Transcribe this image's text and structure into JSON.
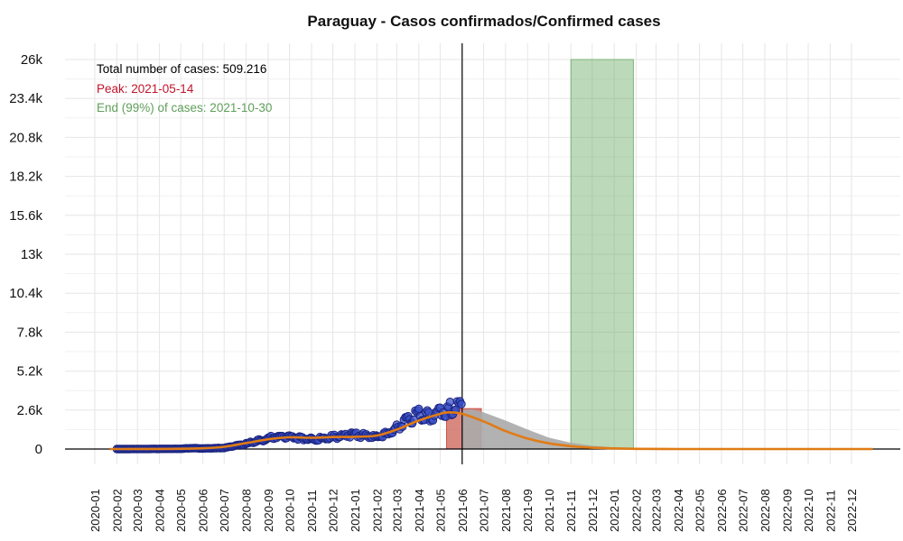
{
  "chart_data": {
    "type": "scatter",
    "title": "Paraguay - Casos confirmados/Confirmed cases",
    "xlabel": "",
    "ylabel": "",
    "xlim": [
      "2020-01-01",
      "2023-01-01"
    ],
    "ylim": [
      0,
      26000
    ],
    "y_ticks": [
      "0",
      "2.6k",
      "5.2k",
      "7.8k",
      "10.4k",
      "13k",
      "15.6k",
      "18.2k",
      "20.8k",
      "23.4k",
      "26k"
    ],
    "y_tick_values": [
      0,
      2600,
      5200,
      7800,
      10400,
      13000,
      15600,
      18200,
      20800,
      23400,
      26000
    ],
    "x_ticks": [
      "2020-01",
      "2020-02",
      "2020-03",
      "2020-04",
      "2020-05",
      "2020-06",
      "2020-07",
      "2020-08",
      "2020-09",
      "2020-10",
      "2020-11",
      "2020-12",
      "2021-01",
      "2021-02",
      "2021-03",
      "2021-04",
      "2021-05",
      "2021-06",
      "2021-07",
      "2021-08",
      "2021-09",
      "2021-10",
      "2021-11",
      "2021-12",
      "2022-01",
      "2022-02",
      "2022-03",
      "2022-04",
      "2022-05",
      "2022-06",
      "2022-07",
      "2022-08",
      "2022-09",
      "2022-10",
      "2022-11",
      "2022-12"
    ],
    "grid": true,
    "annotations": {
      "total": "Total number of cases: 509.216",
      "peak": "Peak: 2021-05-14",
      "end": "End (99%) of cases: 2021-10-30"
    },
    "reference_line": "2021-06-01",
    "peak_band": [
      "2021-05-10",
      "2021-06-28"
    ],
    "end_band": [
      "2021-11-01",
      "2022-01-28"
    ],
    "series": [
      {
        "kind": "observed",
        "x_range": [
          "2020-01-22",
          "2021-05-31"
        ],
        "points": [
          [
            "2020-02-01",
            0
          ],
          [
            "2020-03-01",
            5
          ],
          [
            "2020-04-01",
            10
          ],
          [
            "2020-05-01",
            15
          ],
          [
            "2020-05-15",
            60
          ],
          [
            "2020-06-01",
            40
          ],
          [
            "2020-06-15",
            50
          ],
          [
            "2020-07-01",
            80
          ],
          [
            "2020-07-15",
            200
          ],
          [
            "2020-08-01",
            350
          ],
          [
            "2020-08-15",
            500
          ],
          [
            "2020-09-01",
            700
          ],
          [
            "2020-09-15",
            850
          ],
          [
            "2020-10-01",
            800
          ],
          [
            "2020-10-15",
            750
          ],
          [
            "2020-11-01",
            650
          ],
          [
            "2020-11-15",
            700
          ],
          [
            "2020-12-01",
            800
          ],
          [
            "2020-12-15",
            900
          ],
          [
            "2021-01-01",
            950
          ],
          [
            "2021-01-15",
            900
          ],
          [
            "2021-02-01",
            800
          ],
          [
            "2021-02-15",
            1000
          ],
          [
            "2021-03-01",
            1400
          ],
          [
            "2021-03-15",
            1900
          ],
          [
            "2021-04-01",
            2300
          ],
          [
            "2021-04-15",
            2200
          ],
          [
            "2021-05-01",
            2400
          ],
          [
            "2021-05-15",
            2700
          ],
          [
            "2021-05-31",
            3000
          ]
        ]
      },
      {
        "kind": "fitted",
        "points": [
          [
            "2020-01-22",
            0
          ],
          [
            "2020-04-01",
            5
          ],
          [
            "2020-06-01",
            50
          ],
          [
            "2020-07-01",
            150
          ],
          [
            "2020-08-01",
            400
          ],
          [
            "2020-09-01",
            650
          ],
          [
            "2020-10-01",
            780
          ],
          [
            "2020-11-01",
            750
          ],
          [
            "2020-12-01",
            800
          ],
          [
            "2021-01-01",
            820
          ],
          [
            "2021-02-01",
            900
          ],
          [
            "2021-03-01",
            1300
          ],
          [
            "2021-04-01",
            1900
          ],
          [
            "2021-05-01",
            2350
          ],
          [
            "2021-05-14",
            2450
          ],
          [
            "2021-06-01",
            2350
          ],
          [
            "2021-07-01",
            1850
          ],
          [
            "2021-08-01",
            1200
          ],
          [
            "2021-09-01",
            700
          ],
          [
            "2021-10-01",
            380
          ],
          [
            "2021-11-01",
            190
          ],
          [
            "2021-12-01",
            85
          ],
          [
            "2022-01-01",
            40
          ],
          [
            "2022-02-01",
            15
          ],
          [
            "2022-04-01",
            3
          ],
          [
            "2022-06-01",
            0
          ],
          [
            "2022-12-31",
            0
          ]
        ]
      },
      {
        "kind": "projected-area",
        "points": [
          [
            "2021-06-01",
            2600
          ],
          [
            "2021-06-15",
            2650
          ],
          [
            "2021-07-01",
            2450
          ],
          [
            "2021-08-01",
            1900
          ],
          [
            "2021-09-01",
            1300
          ],
          [
            "2021-10-01",
            760
          ],
          [
            "2021-11-01",
            420
          ],
          [
            "2021-12-01",
            230
          ],
          [
            "2022-01-01",
            110
          ],
          [
            "2022-02-01",
            50
          ],
          [
            "2022-03-01",
            10
          ],
          [
            "2022-04-01",
            0
          ]
        ]
      }
    ],
    "colors": {
      "points_fill": "#3a50c8",
      "points_edge": "#1a237e",
      "fitted_line": "#e07b14",
      "projected_area": "#aaaaaa",
      "peak_band": "#c0392b",
      "end_band": "#6aaa64",
      "total_text": "#000000",
      "peak_text": "#c0142a",
      "end_text": "#5f9f5a",
      "grid": "#e6e6e6"
    }
  }
}
